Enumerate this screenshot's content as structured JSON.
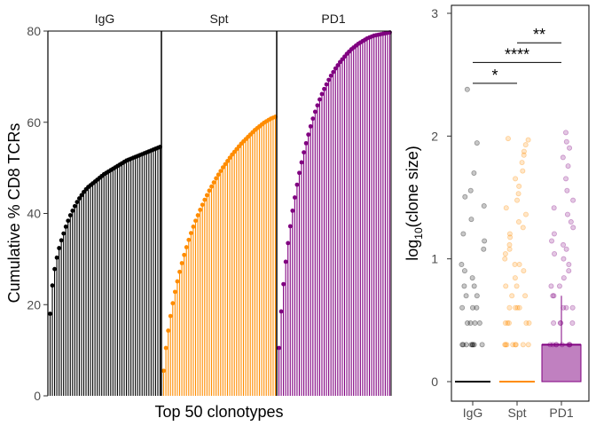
{
  "colors": {
    "IgG": "#000000",
    "Spt": "#ff8c00",
    "PD1": "#800080",
    "pd1_box_fill": "#c080c0"
  },
  "chart_data": [
    {
      "type": "line",
      "ylabel": "Cumulative % CD8 TCRs",
      "xlabel": "Top 50 clonotypes",
      "ylim": [
        0,
        80
      ],
      "yticks": [
        0,
        20,
        40,
        60,
        80
      ],
      "grid": false,
      "panels": [
        "IgG",
        "Spt",
        "PD1"
      ],
      "series": [
        {
          "name": "IgG",
          "values": [
            18,
            24.2,
            27.8,
            30.3,
            32.4,
            34.1,
            35.6,
            37.1,
            38.4,
            39.6,
            40.6,
            41.6,
            42.5,
            43.3,
            44,
            44.7,
            45.3,
            45.8,
            46.2,
            46.6,
            47,
            47.4,
            47.8,
            48.2,
            48.6,
            48.9,
            49.2,
            49.5,
            49.8,
            50.1,
            50.4,
            50.7,
            51,
            51.3,
            51.6,
            51.8,
            52,
            52.2,
            52.4,
            52.6,
            52.8,
            53,
            53.2,
            53.4,
            53.6,
            53.8,
            54,
            54.2,
            54.4,
            54.6
          ]
        },
        {
          "name": "Spt",
          "values": [
            5.5,
            10.5,
            14.3,
            17.5,
            20.3,
            22.8,
            25.1,
            27.2,
            29.1,
            30.9,
            32.6,
            34.2,
            35.7,
            37.1,
            38.4,
            39.6,
            40.8,
            41.9,
            43,
            44,
            45,
            45.9,
            46.8,
            47.7,
            48.5,
            49.3,
            50.1,
            50.8,
            51.5,
            52.2,
            52.9,
            53.5,
            54.1,
            54.7,
            55.3,
            55.8,
            56.3,
            56.8,
            57.3,
            57.8,
            58.3,
            58.7,
            59.1,
            59.5,
            59.9,
            60.2,
            60.5,
            60.8,
            61,
            61.2
          ]
        },
        {
          "name": "PD1",
          "values": [
            10.5,
            18.5,
            24.5,
            29.4,
            33.5,
            37.2,
            40.6,
            43.5,
            46.3,
            48.9,
            51.2,
            53.4,
            55.4,
            57.3,
            59.1,
            60.8,
            62.3,
            63.7,
            65,
            66.2,
            67.3,
            68.3,
            69.3,
            70.2,
            71,
            71.8,
            72.5,
            73.2,
            73.8,
            74.4,
            75,
            75.5,
            76,
            76.4,
            76.8,
            77.2,
            77.5,
            77.8,
            78.1,
            78.4,
            78.6,
            78.8,
            79,
            79.1,
            79.2,
            79.3,
            79.4,
            79.5,
            79.6,
            79.7
          ]
        }
      ]
    },
    {
      "type": "scatter",
      "ylabel": "log10(clone size)",
      "ylabel_base": "log",
      "ylabel_sub": "10",
      "ylabel_rest": "(clone size)",
      "ylim": [
        0,
        3
      ],
      "yticks": [
        0,
        1,
        2,
        3
      ],
      "categories": [
        "IgG",
        "Spt",
        "PD1"
      ],
      "grid": false,
      "series": [
        {
          "name": "IgG",
          "box": {
            "median": 0,
            "q1": 0,
            "q3": 0
          },
          "points": [
            0.301,
            0.301,
            0.301,
            0.301,
            0.301,
            0.301,
            0.301,
            0.301,
            0.477,
            0.477,
            0.477,
            0.477,
            0.602,
            0.602,
            0.602,
            0.699,
            0.699,
            0.778,
            0.778,
            0.845,
            0.903,
            0.954,
            1.079,
            1.146,
            1.204,
            1.322,
            1.431,
            1.505,
            1.556,
            1.699,
            1.944,
            2.38
          ]
        },
        {
          "name": "Spt",
          "box": {
            "median": 0,
            "q1": 0,
            "q3": 0
          },
          "points": [
            0.301,
            0.301,
            0.301,
            0.301,
            0.301,
            0.301,
            0.301,
            0.301,
            0.477,
            0.477,
            0.477,
            0.477,
            0.477,
            0.602,
            0.602,
            0.602,
            0.602,
            0.699,
            0.699,
            0.778,
            0.778,
            0.845,
            0.903,
            0.954,
            0.954,
            1,
            1.041,
            1.079,
            1.114,
            1.176,
            1.204,
            1.255,
            1.301,
            1.362,
            1.415,
            1.477,
            1.531,
            1.591,
            1.653,
            1.716,
            1.785,
            1.845,
            1.875,
            1.929,
            1.969,
            1.98
          ]
        },
        {
          "name": "PD1",
          "box": {
            "median": 0.301,
            "q1": 0,
            "q3": 0.301,
            "whisker_high": 0.699
          },
          "points": [
            0.301,
            0.301,
            0.301,
            0.301,
            0.301,
            0.301,
            0.301,
            0.301,
            0.477,
            0.477,
            0.477,
            0.477,
            0.602,
            0.602,
            0.602,
            0.699,
            0.699,
            0.778,
            0.778,
            0.845,
            0.903,
            0.954,
            1,
            1.041,
            1.079,
            1.114,
            1.146,
            1.204,
            1.255,
            1.301,
            1.362,
            1.415,
            1.477,
            1.556,
            1.653,
            1.756,
            1.826,
            1.903,
            1.954,
            2.029
          ]
        }
      ],
      "annotations": [
        {
          "from": "IgG",
          "to": "Spt",
          "label": "*",
          "y": 2.43
        },
        {
          "from": "IgG",
          "to": "PD1",
          "label": "****",
          "y": 2.6
        },
        {
          "from": "Spt",
          "to": "PD1",
          "label": "**",
          "y": 2.76
        }
      ]
    }
  ]
}
